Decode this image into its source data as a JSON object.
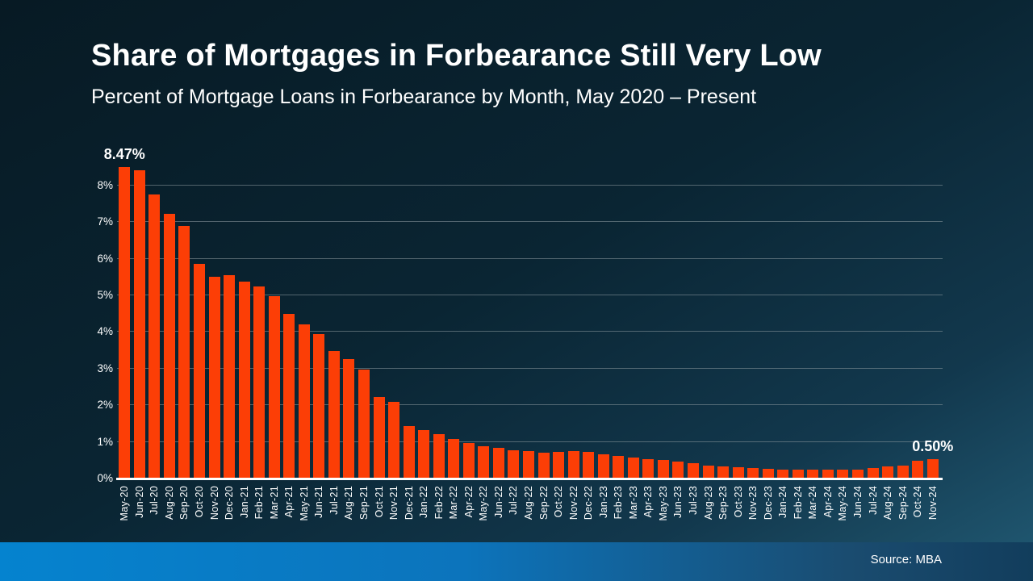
{
  "slide": {
    "title": "Share of Mortgages in Forbearance Still Very Low",
    "subtitle": "Percent of Mortgage Loans in Forbearance by Month, May 2020 – Present",
    "source": "Source: MBA"
  },
  "colors": {
    "background_top_left": "#071a24",
    "background_mid": "#0a2533",
    "background_bottom_right": "#215a74",
    "bar": "#fc3e06",
    "gridline": "#8e9ba1",
    "axis_line": "#ffffff",
    "text": "#ffffff",
    "footer_left": "#0583cf",
    "footer_mid": "#0c74bc",
    "footer_right": "#123d5c"
  },
  "chart_data": {
    "type": "bar",
    "title": "Share of Mortgages in Forbearance Still Very Low",
    "subtitle": "Percent of Mortgage Loans in Forbearance by Month, May 2020 – Present",
    "xlabel": "",
    "ylabel": "",
    "ylim": [
      0,
      8.8
    ],
    "yticks": [
      "0%",
      "1%",
      "2%",
      "3%",
      "4%",
      "5%",
      "6%",
      "7%",
      "8%"
    ],
    "grid": true,
    "legend": "none",
    "categories": [
      "May-20",
      "Jun-20",
      "Jul-20",
      "Aug-20",
      "Sep-20",
      "Oct-20",
      "Nov-20",
      "Dec-20",
      "Jan-21",
      "Feb-21",
      "Mar-21",
      "Apr-21",
      "May-21",
      "Jun-21",
      "Jul-21",
      "Aug-21",
      "Sep-21",
      "Oct-21",
      "Nov-21",
      "Dec-21",
      "Jan-22",
      "Feb-22",
      "Mar-22",
      "Apr-22",
      "May-22",
      "Jun-22",
      "Jul-22",
      "Aug-22",
      "Sep-22",
      "Oct-22",
      "Nov-22",
      "Dec-22",
      "Jan-23",
      "Feb-23",
      "Mar-23",
      "Apr-23",
      "May-23",
      "Jun-23",
      "Jul-23",
      "Aug-23",
      "Sep-23",
      "Oct-23",
      "Nov-23",
      "Dec-23",
      "Jan-24",
      "Feb-24",
      "Mar-24",
      "Apr-24",
      "May-24",
      "Jun-24",
      "Jul-24",
      "Aug-24",
      "Sep-24",
      "Oct-24",
      "Nov-24"
    ],
    "values": [
      8.47,
      8.39,
      7.74,
      7.21,
      6.87,
      5.83,
      5.48,
      5.53,
      5.35,
      5.22,
      4.96,
      4.47,
      4.18,
      3.91,
      3.45,
      3.23,
      2.96,
      2.21,
      2.06,
      1.41,
      1.3,
      1.18,
      1.05,
      0.94,
      0.85,
      0.81,
      0.74,
      0.72,
      0.69,
      0.7,
      0.72,
      0.7,
      0.64,
      0.6,
      0.55,
      0.51,
      0.49,
      0.44,
      0.39,
      0.33,
      0.31,
      0.29,
      0.26,
      0.24,
      0.22,
      0.22,
      0.21,
      0.22,
      0.21,
      0.23,
      0.27,
      0.31,
      0.34,
      0.47,
      0.5
    ],
    "annotations": [
      {
        "category": "May-20",
        "text": "8.47%"
      },
      {
        "category": "Nov-24",
        "text": "0.50%"
      }
    ]
  }
}
